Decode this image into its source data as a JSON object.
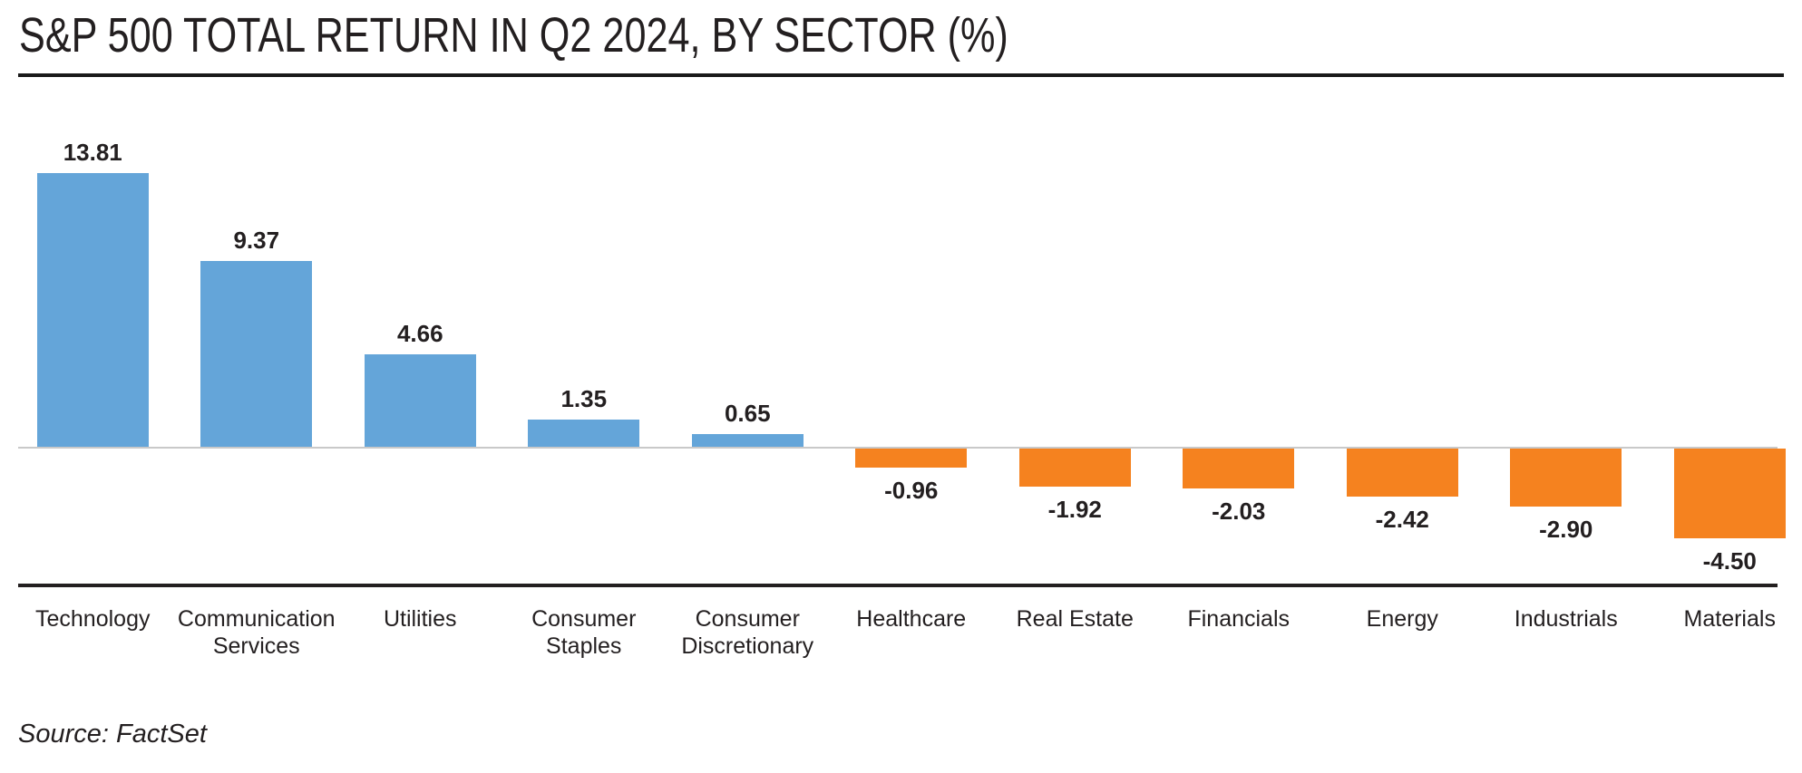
{
  "chart_data": {
    "type": "bar",
    "title": "S&P 500 TOTAL RETURN IN Q2 2024, BY SECTOR (%)",
    "categories": [
      "Technology",
      "Communication Services",
      "Utilities",
      "Consumer Staples",
      "Consumer Discretionary",
      "Healthcare",
      "Real Estate",
      "Financials",
      "Energy",
      "Industrials",
      "Materials"
    ],
    "values": [
      13.81,
      9.37,
      4.66,
      1.35,
      0.65,
      -0.96,
      -1.92,
      -2.03,
      -2.42,
      -2.9,
      -4.5
    ],
    "value_labels": [
      "13.81",
      "9.37",
      "4.66",
      "1.35",
      "0.65",
      "-0.96",
      "-1.92",
      "-2.03",
      "-2.42",
      "-2.90",
      "-4.50"
    ],
    "xlabel": "",
    "ylabel": "",
    "unit": "%",
    "baseline": 0,
    "ylim": [
      -5,
      15
    ],
    "grid": false,
    "legend": false,
    "value_label_position": "outside-end",
    "positive_color": "#64A5D9",
    "negative_color": "#F5821F"
  },
  "source": {
    "text": "Source: FactSet"
  },
  "colors": {
    "text": "#231F20",
    "zero_line": "#C9C9C9",
    "axis_line": "#231F20",
    "title_rule": "#1A1A1A",
    "background": "#FFFFFF"
  }
}
